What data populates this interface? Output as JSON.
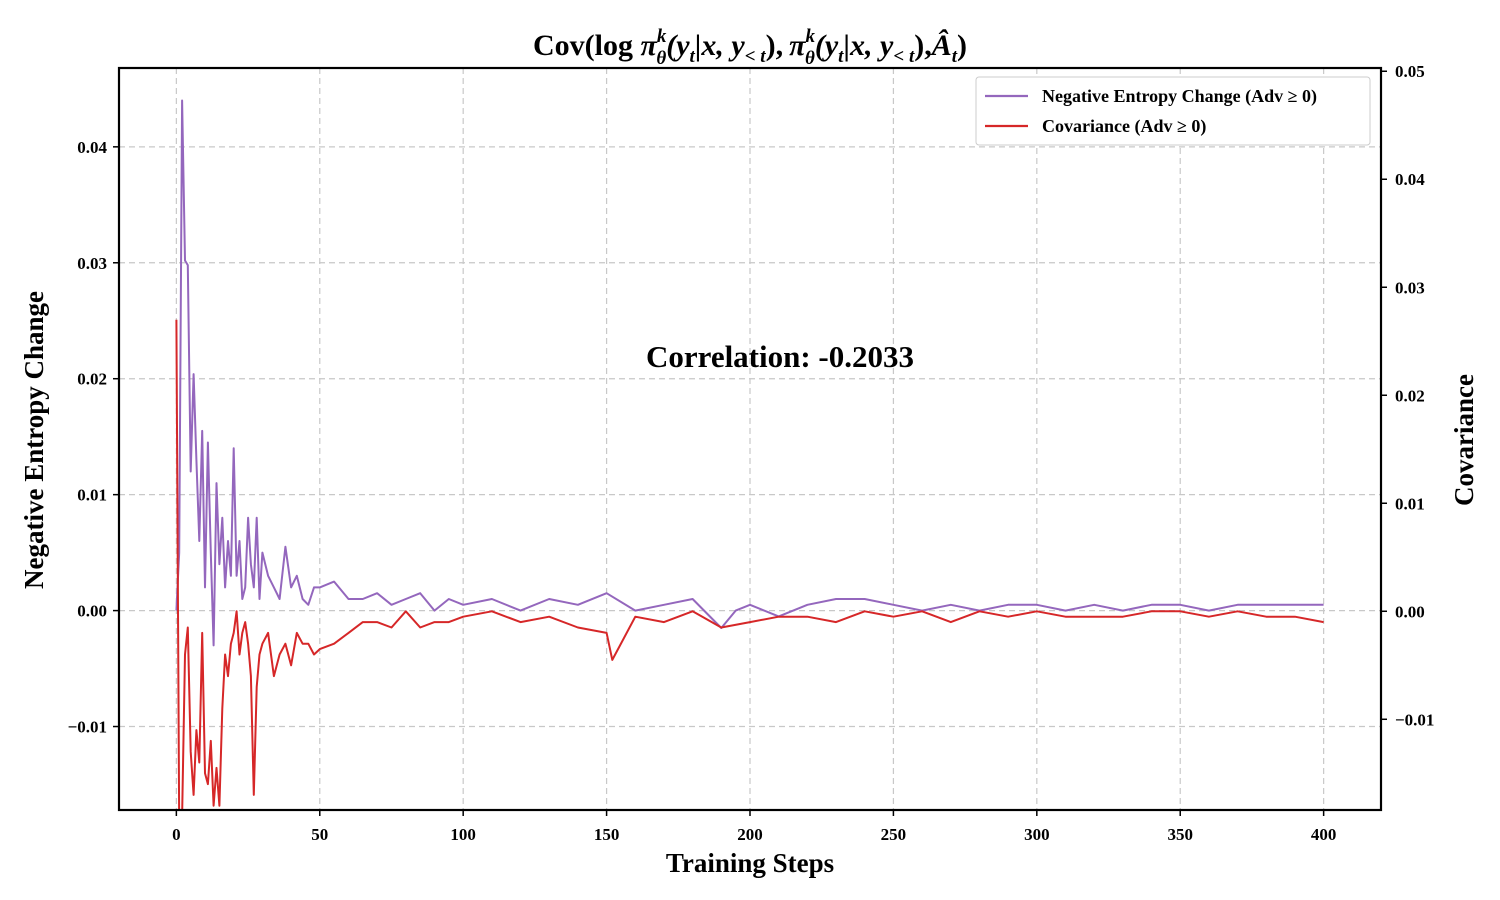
{
  "chart_data": {
    "type": "line",
    "title": "Cov(log π_θ^k(y_t|x, y_<t), π_θ^k(y_t|x, y_<t) Â_t)",
    "title_parts": {
      "prefix": "Cov(log ",
      "pi": "π",
      "sup_k": "k",
      "sub_theta": "θ",
      "arg1": "(y",
      "sub_t": "t",
      "arg_mid": "|x, y",
      "sub_lt": "< t",
      "close": "),",
      "a_hat": "Â",
      "end": ")"
    },
    "xlabel": "Training Steps",
    "ylabel_left": "Negative Entropy Change",
    "ylabel_right": "Covariance",
    "annotation": "Correlation: -0.2033",
    "xlim": [
      -20,
      420
    ],
    "ylim_left": [
      -0.0172,
      0.0468
    ],
    "ylim_right": [
      -0.0184,
      0.0503
    ],
    "x_ticks": [
      "0",
      "50",
      "100",
      "150",
      "200",
      "250",
      "300",
      "350",
      "400"
    ],
    "y_ticks_left": [
      "−0.01",
      "0.00",
      "0.01",
      "0.02",
      "0.03",
      "0.04"
    ],
    "y_ticks_right": [
      "−0.01",
      "0.00",
      "0.01",
      "0.02",
      "0.03",
      "0.04",
      "0.05"
    ],
    "grid": true,
    "legend_position": "top-right",
    "series": [
      {
        "name": "Negative Entropy Change (Adv ≥ 0)",
        "axis": "left",
        "color": "#9467bd",
        "x": [
          0,
          1,
          2,
          3,
          4,
          5,
          6,
          7,
          8,
          9,
          10,
          11,
          12,
          13,
          14,
          15,
          16,
          17,
          18,
          19,
          20,
          21,
          22,
          23,
          24,
          25,
          26,
          27,
          28,
          29,
          30,
          32,
          34,
          36,
          38,
          40,
          42,
          44,
          46,
          48,
          50,
          55,
          60,
          65,
          70,
          75,
          80,
          85,
          90,
          95,
          100,
          110,
          120,
          130,
          140,
          150,
          160,
          170,
          180,
          190,
          195,
          200,
          210,
          220,
          230,
          240,
          250,
          260,
          270,
          280,
          290,
          300,
          310,
          320,
          330,
          340,
          350,
          360,
          370,
          380,
          390,
          400
        ],
        "values": [
          0.0,
          0.005,
          0.044,
          0.0302,
          0.0298,
          0.012,
          0.0204,
          0.013,
          0.006,
          0.0155,
          0.002,
          0.0145,
          0.005,
          -0.003,
          0.011,
          0.004,
          0.008,
          0.002,
          0.006,
          0.003,
          0.014,
          0.003,
          0.006,
          0.001,
          0.002,
          0.008,
          0.004,
          0.002,
          0.008,
          0.001,
          0.005,
          0.003,
          0.002,
          0.001,
          0.0055,
          0.002,
          0.003,
          0.001,
          0.0005,
          0.002,
          0.002,
          0.0025,
          0.001,
          0.001,
          0.0015,
          0.0005,
          0.001,
          0.0015,
          0.0,
          0.001,
          0.0005,
          0.001,
          0.0,
          0.001,
          0.0005,
          0.0015,
          0.0,
          0.0005,
          0.001,
          -0.0015,
          0.0,
          0.0005,
          -0.0005,
          0.0005,
          0.001,
          0.001,
          0.0005,
          0.0,
          0.0005,
          0.0,
          0.0005,
          0.0005,
          0.0,
          0.0005,
          0.0,
          0.0005,
          0.0005,
          0.0,
          0.0005,
          0.0005,
          0.0005,
          0.0005
        ]
      },
      {
        "name": "Covariance (Adv ≥ 0)",
        "axis": "right",
        "color": "#d62728",
        "x": [
          0,
          1,
          2,
          3,
          4,
          5,
          6,
          7,
          8,
          9,
          10,
          11,
          12,
          13,
          14,
          15,
          16,
          17,
          18,
          19,
          20,
          21,
          22,
          23,
          24,
          25,
          26,
          27,
          28,
          29,
          30,
          32,
          34,
          36,
          38,
          40,
          42,
          44,
          46,
          48,
          50,
          55,
          60,
          65,
          70,
          75,
          80,
          85,
          90,
          95,
          100,
          110,
          120,
          130,
          140,
          150,
          152,
          160,
          170,
          180,
          190,
          200,
          210,
          220,
          230,
          240,
          250,
          260,
          270,
          280,
          290,
          300,
          310,
          320,
          330,
          340,
          350,
          360,
          370,
          380,
          390,
          400
        ],
        "values": [
          0.027,
          -0.02,
          -0.019,
          -0.004,
          -0.0015,
          -0.013,
          -0.017,
          -0.011,
          -0.014,
          -0.002,
          -0.015,
          -0.016,
          -0.012,
          -0.018,
          -0.0145,
          -0.018,
          -0.009,
          -0.004,
          -0.006,
          -0.003,
          -0.002,
          0.0,
          -0.004,
          -0.002,
          -0.001,
          -0.003,
          -0.006,
          -0.017,
          -0.007,
          -0.004,
          -0.003,
          -0.002,
          -0.006,
          -0.004,
          -0.003,
          -0.005,
          -0.002,
          -0.003,
          -0.003,
          -0.004,
          -0.0035,
          -0.003,
          -0.002,
          -0.001,
          -0.001,
          -0.0015,
          0.0,
          -0.0015,
          -0.001,
          -0.001,
          -0.0005,
          0.0,
          -0.001,
          -0.0005,
          -0.0015,
          -0.002,
          -0.0045,
          -0.0005,
          -0.001,
          0.0,
          -0.0015,
          -0.001,
          -0.0005,
          -0.0005,
          -0.001,
          0.0,
          -0.0005,
          0.0,
          -0.001,
          0.0,
          -0.0005,
          0.0,
          -0.0005,
          -0.0005,
          -0.0005,
          0.0,
          0.0,
          -0.0005,
          0.0,
          -0.0005,
          -0.0005,
          -0.001
        ]
      }
    ]
  }
}
